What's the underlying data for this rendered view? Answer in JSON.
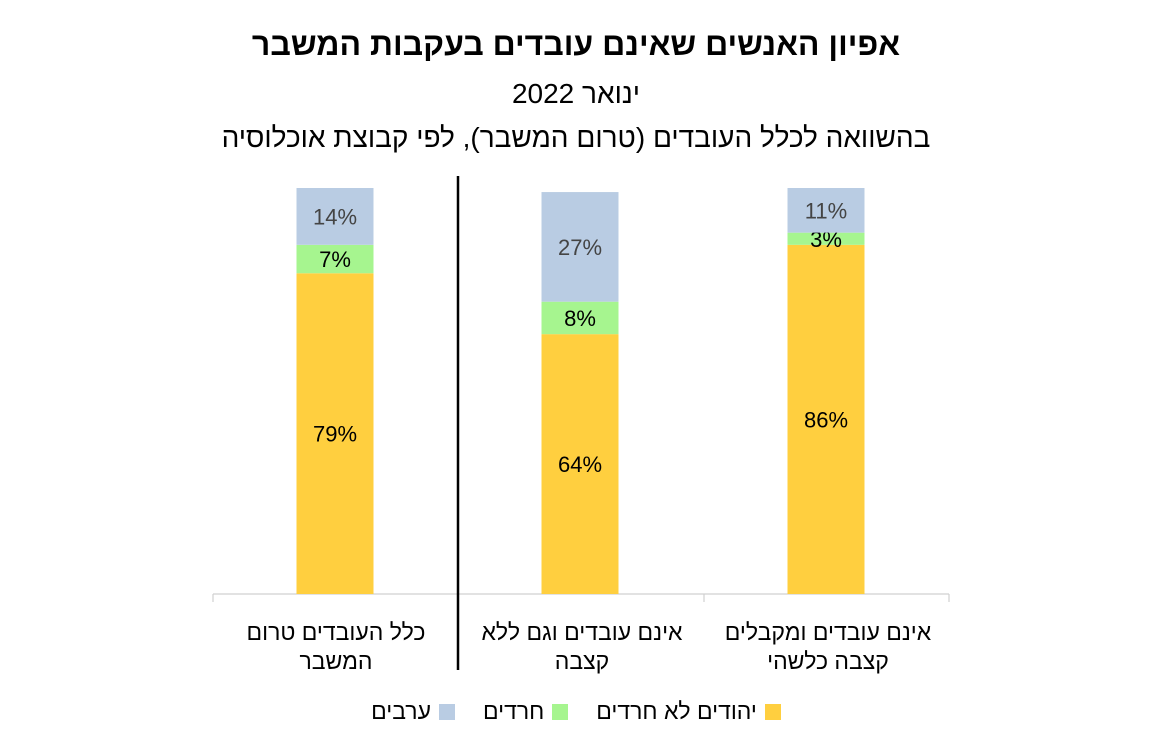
{
  "chart_data": {
    "type": "bar",
    "stacked": true,
    "title": "אפיון האנשים שאינם עובדים בעקבות המשבר",
    "subtitle": "ינואר 2022",
    "subtitle2": "בהשוואה לכלל העובדים (טרום המשבר), לפי קבוצת אוכלוסיה",
    "categories": [
      "אינם עובדים ומקבלים קצבה כלשהי",
      "אינם עובדים וגם ללא קצבה",
      "כלל העובדים טרום המשבר"
    ],
    "series": [
      {
        "name": "יהודים לא חרדים",
        "values": [
          86,
          64,
          79
        ],
        "color": "#FFCF3F"
      },
      {
        "name": "חרדים",
        "values": [
          3,
          8,
          7
        ],
        "color": "#A6F58F"
      },
      {
        "name": "ערבים",
        "values": [
          11,
          27,
          14
        ],
        "color": "#B9CCE3"
      }
    ],
    "data_labels": [
      [
        "86%",
        "64%",
        "79%"
      ],
      [
        "3%",
        "8%",
        "7%"
      ],
      [
        "11%",
        "27%",
        "14%"
      ]
    ],
    "ylim": [
      0,
      100
    ],
    "legend_position": "bottom",
    "grid": false
  }
}
